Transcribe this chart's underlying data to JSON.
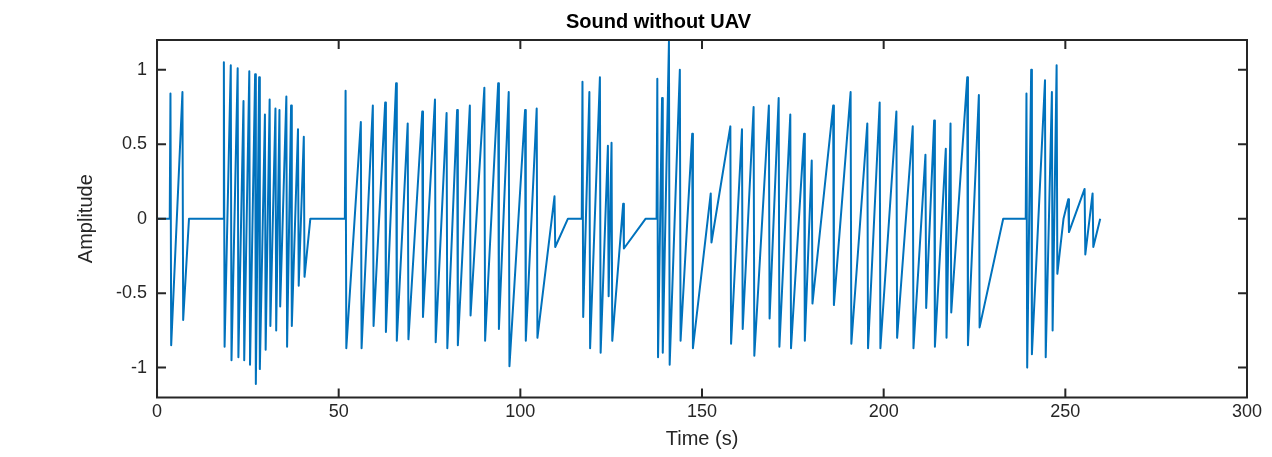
{
  "chart_data": {
    "type": "line",
    "title": "Sound without UAV",
    "xlabel": "Time (s)",
    "ylabel": "Amplitude",
    "xlim": [
      0,
      300
    ],
    "xticks": [
      0,
      50,
      100,
      150,
      200,
      250,
      300
    ],
    "ylim": [
      -1.2,
      1.2
    ],
    "yticks": [
      -1,
      -0.5,
      0,
      0.5,
      1
    ],
    "grid": false,
    "legend": false,
    "marker": "none",
    "line_style": "solid",
    "series": [
      {
        "color": "#0072bd",
        "x": [
          0,
          3.5,
          3.7,
          3.9,
          7.0,
          7.2,
          8.8,
          18.2,
          18.4,
          18.6,
          20.3,
          20.5,
          22.2,
          22.4,
          23.8,
          24.0,
          25.4,
          25.6,
          27.0,
          27.2,
          28.1,
          28.3,
          29.7,
          29.9,
          31.0,
          31.2,
          32.6,
          32.8,
          33.7,
          33.9,
          35.6,
          35.8,
          36.9,
          37.1,
          38.8,
          39.0,
          40.4,
          40.6,
          42.2,
          51.7,
          51.9,
          52.1,
          56.1,
          56.3,
          59.4,
          59.6,
          62.8,
          63.0,
          65.8,
          66.0,
          69.0,
          69.2,
          73.0,
          73.2,
          76.5,
          76.7,
          79.7,
          79.9,
          82.6,
          82.8,
          86.1,
          86.3,
          90.1,
          90.3,
          93.9,
          94.1,
          96.8,
          97.0,
          101.3,
          101.5,
          104.5,
          104.7,
          109.4,
          109.6,
          113.1,
          116.9,
          117.1,
          117.3,
          119.0,
          119.2,
          121.9,
          122.1,
          124.1,
          124.3,
          125.1,
          125.3,
          128.3,
          128.5,
          134.5,
          137.5,
          137.7,
          137.9,
          139.0,
          139.2,
          140.9,
          141.1,
          143.9,
          144.1,
          147.3,
          147.5,
          152.4,
          152.6,
          157.8,
          158.0,
          161.0,
          161.2,
          164.2,
          164.4,
          168.4,
          168.6,
          171.1,
          171.3,
          174.3,
          174.5,
          178.1,
          178.3,
          180.2,
          180.4,
          186.1,
          186.3,
          190.9,
          191.1,
          195.5,
          195.7,
          198.9,
          199.1,
          203.5,
          203.7,
          208.0,
          208.2,
          211.5,
          211.7,
          213.9,
          214.1,
          217.1,
          217.3,
          218.4,
          218.6,
          223.0,
          223.2,
          226.2,
          226.4,
          232.9,
          239.1,
          239.3,
          239.5,
          240.6,
          240.8,
          244.4,
          244.6,
          246.3,
          246.5,
          247.6,
          247.8,
          249.5,
          250.8,
          251.0,
          255.3,
          255.5,
          257.5,
          257.7,
          259.6
        ],
        "values": [
          0,
          0,
          0.84,
          -0.85,
          0.85,
          -0.68,
          0,
          0,
          1.05,
          -0.86,
          1.03,
          -0.95,
          1.01,
          -0.93,
          0.79,
          -0.95,
          0.99,
          -0.98,
          0.97,
          -1.11,
          0.95,
          -1.01,
          0.7,
          -0.88,
          0.8,
          -0.72,
          0.74,
          -0.75,
          0.73,
          -0.59,
          0.82,
          -0.86,
          0.76,
          -0.72,
          0.6,
          -0.45,
          0.55,
          -0.39,
          0,
          0,
          0.86,
          -0.87,
          0.65,
          -0.87,
          0.76,
          -0.72,
          0.78,
          -0.76,
          0.91,
          -0.82,
          0.64,
          -0.81,
          0.72,
          -0.66,
          0.8,
          -0.83,
          0.71,
          -0.87,
          0.73,
          -0.85,
          0.76,
          -0.65,
          0.88,
          -0.82,
          0.91,
          -0.74,
          0.85,
          -0.99,
          0.73,
          -0.82,
          0.74,
          -0.8,
          0.15,
          -0.19,
          0,
          0,
          0.92,
          -0.66,
          0.85,
          -0.87,
          0.95,
          -0.9,
          0.49,
          -0.52,
          0.51,
          -0.82,
          0.1,
          -0.2,
          0,
          0,
          0.94,
          -0.93,
          0.81,
          -0.9,
          1.19,
          -0.98,
          1.0,
          -0.82,
          0.57,
          -0.87,
          0.17,
          -0.16,
          0.62,
          -0.84,
          0.6,
          -0.74,
          0.75,
          -0.92,
          0.76,
          -0.67,
          0.81,
          -0.86,
          0.7,
          -0.87,
          0.57,
          -0.82,
          0.39,
          -0.57,
          0.76,
          -0.58,
          0.85,
          -0.84,
          0.64,
          -0.87,
          0.78,
          -0.87,
          0.72,
          -0.8,
          0.62,
          -0.87,
          0.43,
          -0.6,
          0.66,
          -0.86,
          0.47,
          -0.8,
          0.64,
          -0.63,
          0.95,
          -0.85,
          0.83,
          -0.73,
          0,
          0,
          0.84,
          -1.0,
          1.0,
          -0.91,
          0.93,
          -0.93,
          0.85,
          -0.75,
          1.03,
          -0.37,
          0,
          0.13,
          -0.09,
          0.2,
          -0.24,
          0.17,
          -0.19,
          0
        ]
      }
    ]
  }
}
